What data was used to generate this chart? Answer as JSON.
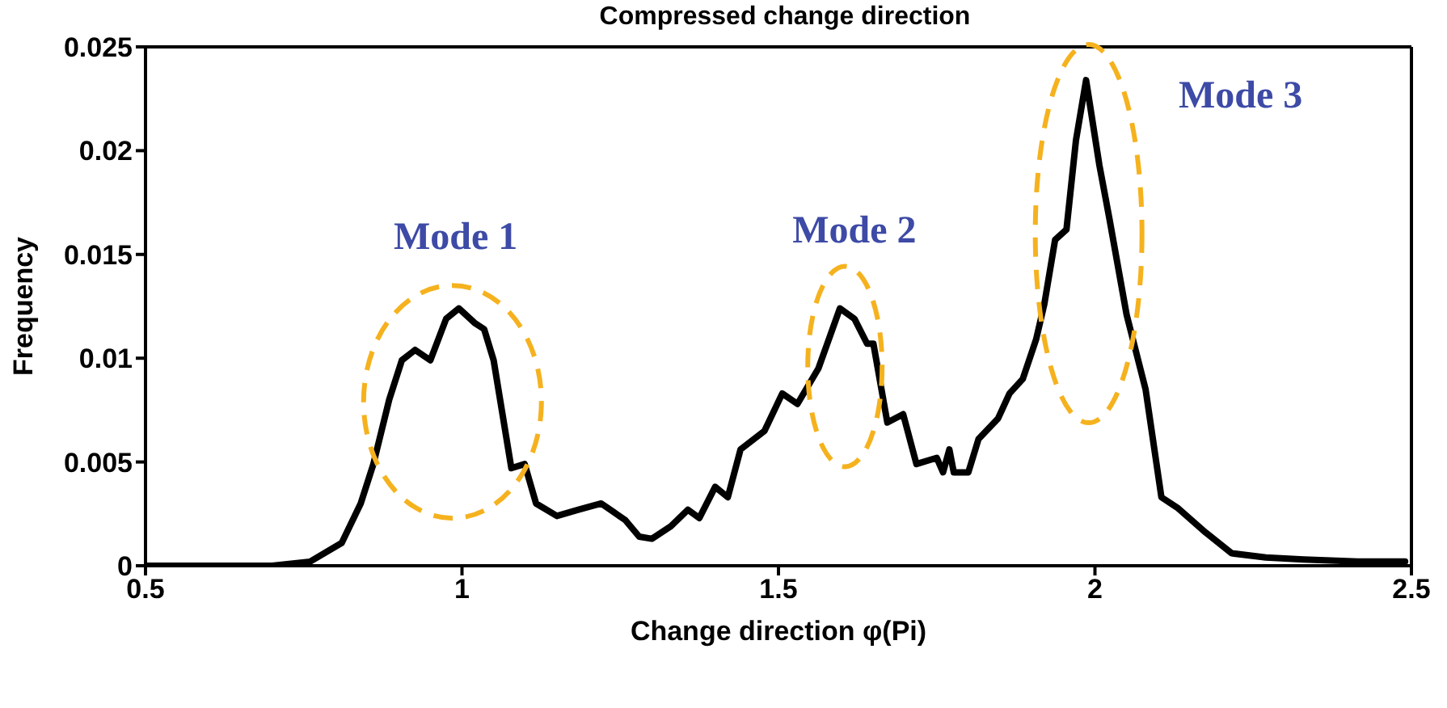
{
  "chart_data": {
    "type": "line",
    "title": "Compressed change direction",
    "xlabel": "Change direction φ(Pi)",
    "ylabel": "Frequency",
    "x": [
      0.5,
      0.6,
      0.7,
      0.73,
      0.76,
      0.81,
      0.84,
      0.86,
      0.885,
      0.905,
      0.926,
      0.95,
      0.975,
      0.995,
      1.02,
      1.035,
      1.05,
      1.078,
      1.099,
      1.117,
      1.15,
      1.184,
      1.22,
      1.258,
      1.28,
      1.3,
      1.33,
      1.357,
      1.375,
      1.4,
      1.42,
      1.44,
      1.478,
      1.506,
      1.53,
      1.563,
      1.597,
      1.62,
      1.64,
      1.65,
      1.672,
      1.697,
      1.718,
      1.75,
      1.76,
      1.77,
      1.777,
      1.8,
      1.816,
      1.847,
      1.865,
      1.886,
      1.907,
      1.92,
      1.937,
      1.955,
      1.97,
      1.986,
      2.007,
      2.023,
      2.05,
      2.08,
      2.105,
      2.13,
      2.175,
      2.216,
      2.27,
      2.33,
      2.415,
      2.49
    ],
    "series": [
      {
        "color": "#000000",
        "values": [
          0,
          0,
          0,
          0.0001,
          0.0002,
          0.0011,
          0.003,
          0.0049,
          0.008,
          0.0099,
          0.0104,
          0.0099,
          0.0119,
          0.0124,
          0.0117,
          0.0114,
          0.0099,
          0.0047,
          0.0049,
          0.003,
          0.0024,
          0.0027,
          0.003,
          0.0022,
          0.0014,
          0.0013,
          0.0019,
          0.0027,
          0.0023,
          0.0038,
          0.0033,
          0.0056,
          0.0065,
          0.0083,
          0.0078,
          0.0095,
          0.0124,
          0.0119,
          0.0107,
          0.0107,
          0.0069,
          0.0073,
          0.0049,
          0.0052,
          0.0045,
          0.0056,
          0.0045,
          0.0045,
          0.0061,
          0.0071,
          0.0083,
          0.009,
          0.0109,
          0.0126,
          0.0157,
          0.0162,
          0.0205,
          0.0234,
          0.0193,
          0.0167,
          0.0121,
          0.0085,
          0.0033,
          0.0028,
          0.0016,
          0.0006,
          0.0004,
          0.0003,
          0.0002,
          0.0002
        ]
      }
    ],
    "xlim": [
      0.5,
      2.5
    ],
    "xticks": [
      0.5,
      1,
      1.5,
      2,
      2.5
    ],
    "ylim": [
      0,
      0.025
    ],
    "yticks": [
      0,
      0.005,
      0.01,
      0.015,
      0.02,
      0.025
    ],
    "annotations": [
      "Mode 1",
      "Mode 2",
      "Mode 3"
    ],
    "grid": false,
    "legend": false,
    "marker": "none",
    "line_style": "solid"
  }
}
